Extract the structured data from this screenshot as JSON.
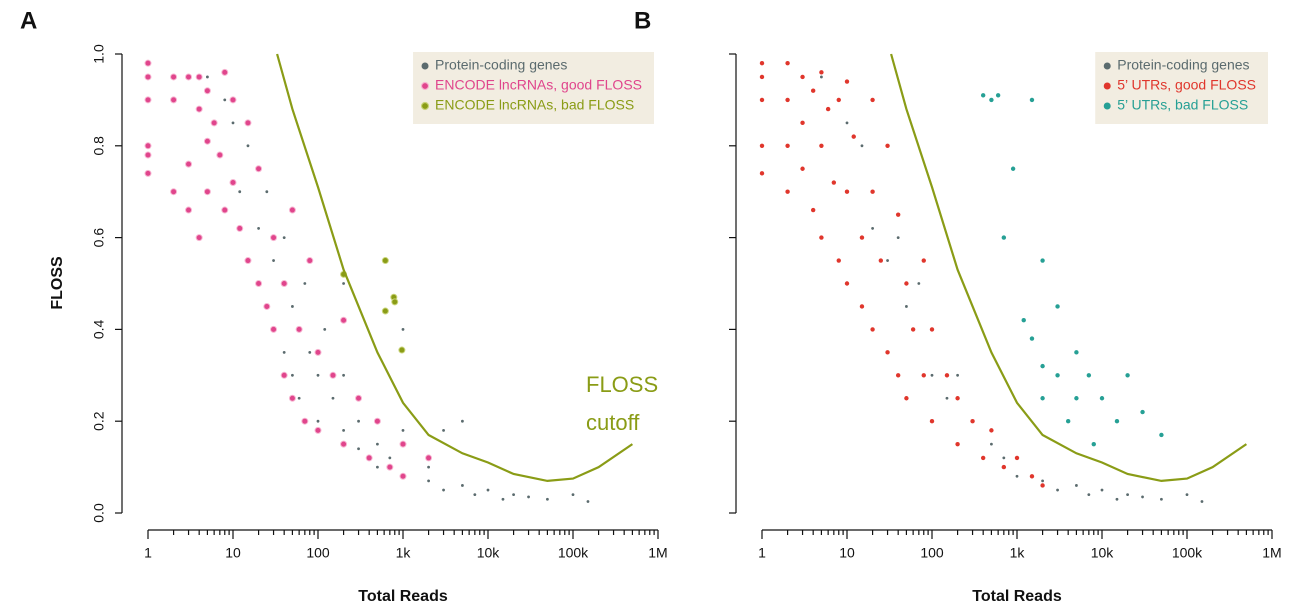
{
  "chart_data": [
    {
      "type": "scatter",
      "panel_label": "A",
      "xlabel": "Total Reads",
      "ylabel": "FLOSS",
      "xscale": "log",
      "xlim": [
        1,
        1000000
      ],
      "ylim": [
        0,
        1
      ],
      "xticks": [
        1,
        10,
        100,
        {
          "value": 1000,
          "label": "1k"
        },
        {
          "value": 10000,
          "label": "10k"
        },
        {
          "value": 100000,
          "label": "100k"
        },
        {
          "value": 1000000,
          "label": "1M"
        }
      ],
      "xminorticks": [
        2,
        3,
        4,
        5,
        6,
        7,
        8,
        9,
        20,
        30,
        40,
        50,
        60,
        70,
        80,
        90,
        200,
        300,
        400,
        500,
        600,
        700,
        800,
        900,
        2000,
        3000,
        4000,
        5000,
        6000,
        7000,
        8000,
        9000,
        20000,
        30000,
        40000,
        50000,
        60000,
        70000,
        80000,
        90000,
        200000,
        300000,
        400000,
        500000,
        600000,
        700000,
        800000,
        900000
      ],
      "yticks": [
        {
          "value": 0,
          "label": "0.0"
        },
        0.2,
        0.4,
        0.6,
        0.8,
        {
          "value": 1,
          "label": "1.0"
        }
      ],
      "legend": "top-right",
      "legend_background": "#f2ede1",
      "series": [
        {
          "name": "Protein-coding genes",
          "color": "#5b6b6e",
          "size": 1.4,
          "x": [
            5,
            8,
            10,
            12,
            15,
            20,
            20,
            25,
            30,
            30,
            40,
            40,
            50,
            50,
            60,
            70,
            80,
            100,
            100,
            120,
            150,
            200,
            200,
            300,
            300,
            500,
            500,
            700,
            1000,
            1000,
            2000,
            2000,
            3000,
            5000,
            7000,
            10000,
            15000,
            20000,
            30000,
            50000,
            100000,
            150000,
            5000,
            200,
            1000,
            3000
          ],
          "y": [
            0.95,
            0.9,
            0.85,
            0.7,
            0.8,
            0.62,
            0.5,
            0.7,
            0.55,
            0.4,
            0.6,
            0.35,
            0.45,
            0.3,
            0.25,
            0.5,
            0.35,
            0.3,
            0.2,
            0.4,
            0.25,
            0.3,
            0.18,
            0.2,
            0.14,
            0.15,
            0.1,
            0.12,
            0.08,
            0.18,
            0.07,
            0.1,
            0.05,
            0.06,
            0.04,
            0.05,
            0.03,
            0.04,
            0.035,
            0.03,
            0.04,
            0.025,
            0.2,
            0.5,
            0.4,
            0.18
          ]
        },
        {
          "name": "ENCODE lncRNAs, good FLOSS",
          "color": "#e0458c",
          "edge": "#f7b6d2",
          "size": 3,
          "x": [
            1,
            1,
            1,
            1,
            1,
            1,
            2,
            2,
            2,
            3,
            3,
            3,
            4,
            4,
            4,
            5,
            5,
            5,
            6,
            7,
            8,
            8,
            10,
            10,
            12,
            15,
            15,
            20,
            20,
            25,
            30,
            30,
            40,
            40,
            50,
            50,
            60,
            70,
            80,
            100,
            100,
            150,
            200,
            200,
            300,
            400,
            500,
            700,
            1000,
            1000,
            2000
          ],
          "y": [
            0.98,
            0.95,
            0.9,
            0.8,
            0.78,
            0.74,
            0.95,
            0.9,
            0.7,
            0.95,
            0.66,
            0.76,
            0.95,
            0.88,
            0.6,
            0.92,
            0.81,
            0.7,
            0.85,
            0.78,
            0.96,
            0.66,
            0.9,
            0.72,
            0.62,
            0.55,
            0.85,
            0.5,
            0.75,
            0.45,
            0.6,
            0.4,
            0.5,
            0.3,
            0.66,
            0.25,
            0.4,
            0.2,
            0.55,
            0.35,
            0.18,
            0.3,
            0.15,
            0.42,
            0.25,
            0.12,
            0.2,
            0.1,
            0.08,
            0.15,
            0.12
          ]
        },
        {
          "name": "ENCODE lncRNAs, bad FLOSS",
          "color": "#8a9c16",
          "edge": "#c9d47a",
          "size": 3,
          "x": [
            200,
            620,
            620,
            780,
            800,
            970
          ],
          "y": [
            0.52,
            0.55,
            0.44,
            0.47,
            0.46,
            0.355
          ]
        }
      ],
      "curve": {
        "color": "#8a9c16",
        "x": [
          33,
          50,
          100,
          200,
          500,
          1000,
          2000,
          5000,
          10000,
          20000,
          50000,
          100000,
          200000,
          500000
        ],
        "y": [
          1.0,
          0.88,
          0.71,
          0.53,
          0.35,
          0.24,
          0.17,
          0.13,
          0.11,
          0.085,
          0.07,
          0.075,
          0.1,
          0.15
        ]
      },
      "annotation": [
        "FLOSS",
        "cutoff"
      ]
    },
    {
      "type": "scatter",
      "panel_label": "B",
      "xlabel": "Total Reads",
      "xscale": "log",
      "xlim": [
        1,
        1000000
      ],
      "ylim": [
        0,
        1
      ],
      "xticks": [
        1,
        10,
        100,
        {
          "value": 1000,
          "label": "1k"
        },
        {
          "value": 10000,
          "label": "10k"
        },
        {
          "value": 100000,
          "label": "100k"
        },
        {
          "value": 1000000,
          "label": "1M"
        }
      ],
      "xminorticks": [
        2,
        3,
        4,
        5,
        6,
        7,
        8,
        9,
        20,
        30,
        40,
        50,
        60,
        70,
        80,
        90,
        200,
        300,
        400,
        500,
        600,
        700,
        800,
        900,
        2000,
        3000,
        4000,
        5000,
        6000,
        7000,
        8000,
        9000,
        20000,
        30000,
        40000,
        50000,
        60000,
        70000,
        80000,
        90000,
        200000,
        300000,
        400000,
        500000,
        600000,
        700000,
        800000,
        900000
      ],
      "yticks": [
        0,
        0.2,
        0.4,
        0.6,
        0.8,
        1
      ],
      "legend": "top-right",
      "legend_background": "#f2ede1",
      "series": [
        {
          "name": "Protein-coding genes",
          "color": "#5b6b6e",
          "size": 1.4,
          "x": [
            5,
            8,
            10,
            15,
            20,
            30,
            40,
            50,
            70,
            100,
            150,
            200,
            300,
            500,
            700,
            1000,
            2000,
            3000,
            5000,
            7000,
            10000,
            15000,
            20000,
            30000,
            50000,
            100000,
            150000
          ],
          "y": [
            0.95,
            0.9,
            0.85,
            0.8,
            0.62,
            0.55,
            0.6,
            0.45,
            0.5,
            0.3,
            0.25,
            0.3,
            0.2,
            0.15,
            0.12,
            0.08,
            0.07,
            0.05,
            0.06,
            0.04,
            0.05,
            0.03,
            0.04,
            0.035,
            0.03,
            0.04,
            0.025
          ]
        },
        {
          "name": "5’ UTRs, good FLOSS",
          "color": "#e0362c",
          "size": 2.2,
          "x": [
            1,
            1,
            1,
            1,
            1,
            2,
            2,
            2,
            2,
            3,
            3,
            3,
            4,
            4,
            5,
            5,
            5,
            6,
            7,
            8,
            8,
            10,
            10,
            10,
            12,
            15,
            15,
            20,
            20,
            20,
            25,
            30,
            30,
            40,
            40,
            50,
            50,
            60,
            80,
            80,
            100,
            100,
            150,
            200,
            200,
            300,
            400,
            500,
            700,
            1000,
            1500,
            2000
          ],
          "y": [
            0.98,
            0.95,
            0.9,
            0.8,
            0.74,
            0.98,
            0.9,
            0.8,
            0.7,
            0.95,
            0.85,
            0.75,
            0.92,
            0.66,
            0.96,
            0.8,
            0.6,
            0.88,
            0.72,
            0.9,
            0.55,
            0.94,
            0.7,
            0.5,
            0.82,
            0.6,
            0.45,
            0.9,
            0.7,
            0.4,
            0.55,
            0.8,
            0.35,
            0.65,
            0.3,
            0.5,
            0.25,
            0.4,
            0.3,
            0.55,
            0.2,
            0.4,
            0.3,
            0.15,
            0.25,
            0.2,
            0.12,
            0.18,
            0.1,
            0.12,
            0.08,
            0.06
          ]
        },
        {
          "name": "5’ UTRs, bad FLOSS",
          "color": "#26a095",
          "size": 2.2,
          "x": [
            500,
            600,
            400,
            1500,
            700,
            900,
            2000,
            3000,
            1500,
            2000,
            3000,
            5000,
            7000,
            10000,
            20000,
            15000,
            30000,
            2000,
            4000,
            8000,
            1200,
            5000,
            50000
          ],
          "y": [
            0.9,
            0.91,
            0.91,
            0.9,
            0.6,
            0.75,
            0.55,
            0.45,
            0.38,
            0.32,
            0.3,
            0.35,
            0.3,
            0.25,
            0.3,
            0.2,
            0.22,
            0.25,
            0.2,
            0.15,
            0.42,
            0.25,
            0.17
          ]
        }
      ],
      "curve": {
        "color": "#8a9c16",
        "x": [
          33,
          50,
          100,
          200,
          500,
          1000,
          2000,
          5000,
          10000,
          20000,
          50000,
          100000,
          200000,
          500000
        ],
        "y": [
          1.0,
          0.88,
          0.71,
          0.53,
          0.35,
          0.24,
          0.17,
          0.13,
          0.11,
          0.085,
          0.07,
          0.075,
          0.1,
          0.15
        ]
      }
    }
  ]
}
